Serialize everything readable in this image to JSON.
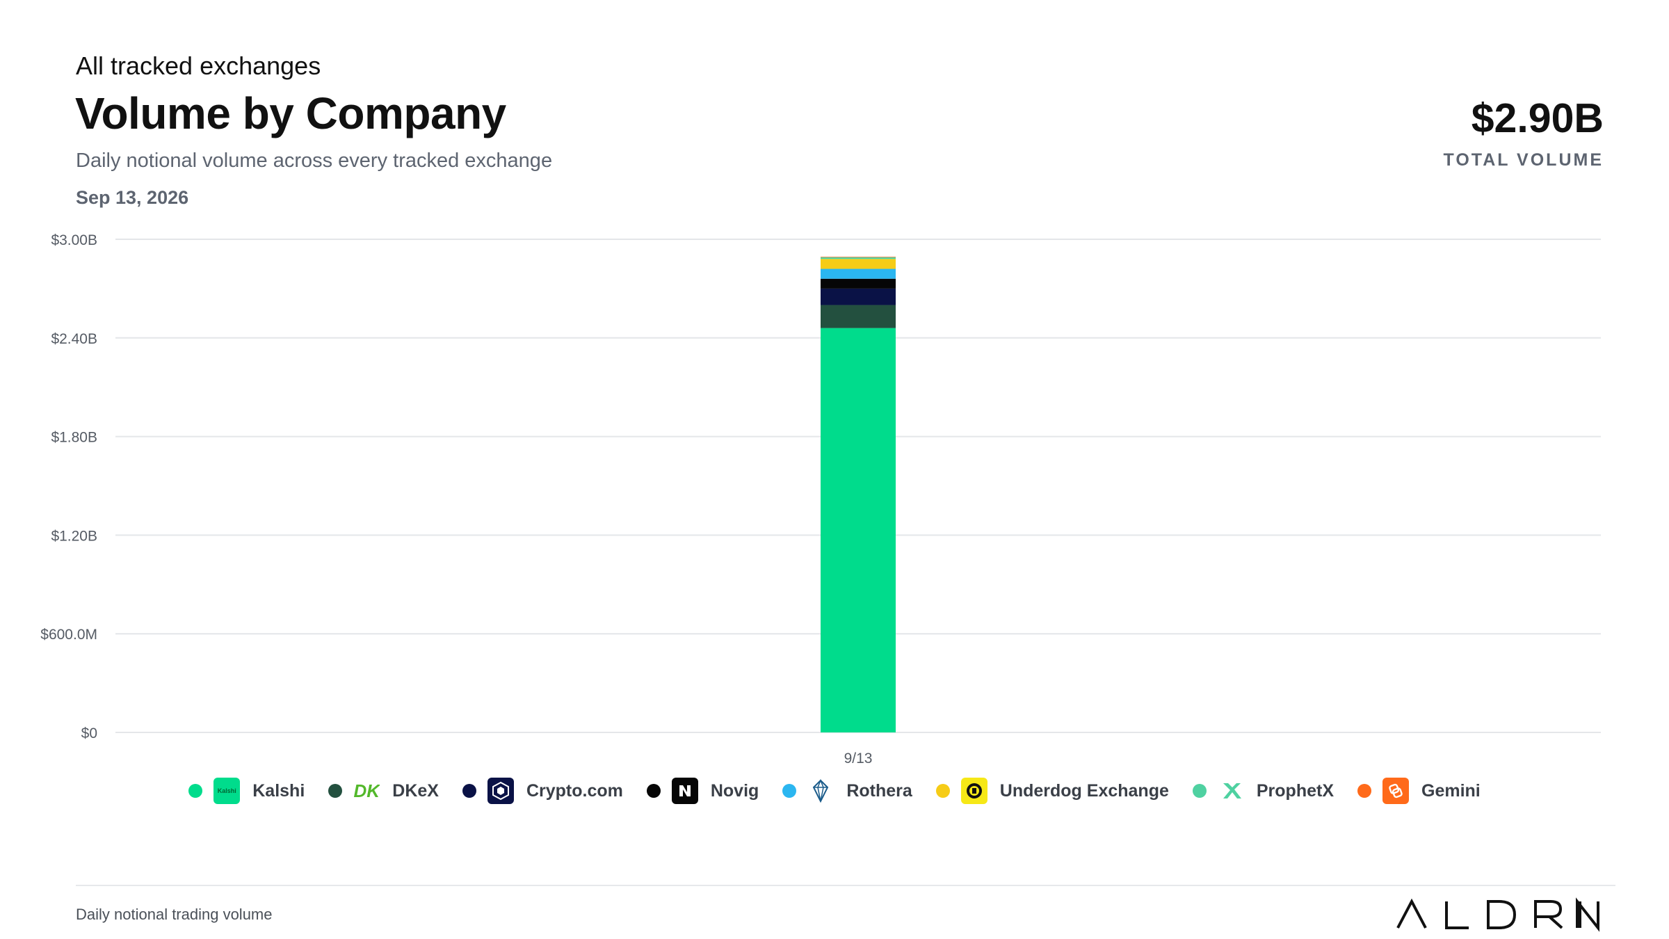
{
  "header": {
    "eyebrow": "All tracked exchanges",
    "title": "Volume by Company",
    "subtitle": "Daily notional volume across every tracked exchange",
    "date": "Sep 13, 2026",
    "total_value": "$2.90B",
    "total_label": "TOTAL VOLUME"
  },
  "chart_data": {
    "type": "bar",
    "stacked": true,
    "categories": [
      "9/13"
    ],
    "y_ticks": [
      {
        "value": 0,
        "label": "$0"
      },
      {
        "value": 600000000,
        "label": "$600.0M"
      },
      {
        "value": 1200000000,
        "label": "$1.20B"
      },
      {
        "value": 1800000000,
        "label": "$1.80B"
      },
      {
        "value": 2400000000,
        "label": "$2.40B"
      },
      {
        "value": 3000000000,
        "label": "$3.00B"
      }
    ],
    "ylim": [
      0,
      3000000000
    ],
    "grid": true,
    "legend_position": "bottom",
    "series": [
      {
        "name": "Kalshi",
        "color": "#00dc8c",
        "values": [
          2460000000
        ]
      },
      {
        "name": "DKeX",
        "color": "#23503f",
        "values": [
          140000000
        ]
      },
      {
        "name": "Crypto.com",
        "color": "#0a1246",
        "values": [
          100000000
        ]
      },
      {
        "name": "Novig",
        "color": "#060606",
        "values": [
          60000000
        ]
      },
      {
        "name": "Rothera",
        "color": "#2bb6f0",
        "values": [
          60000000
        ]
      },
      {
        "name": "Underdog Exchange",
        "color": "#f6cc17",
        "values": [
          60000000
        ]
      },
      {
        "name": "ProphetX",
        "color": "#4fd1a1",
        "values": [
          10000000
        ]
      },
      {
        "name": "Gemini",
        "color": "#ff6a1a",
        "values": [
          3000000
        ]
      }
    ]
  },
  "legend": {
    "logos": [
      {
        "series": "Kalshi",
        "icon": "kalshi-logo-icon",
        "text": "Kalshi"
      },
      {
        "series": "DKeX",
        "icon": "dk-logo-icon",
        "text": "DK"
      },
      {
        "series": "Crypto.com",
        "icon": "crypto-com-shield-icon"
      },
      {
        "series": "Novig",
        "icon": "novig-n-icon"
      },
      {
        "series": "Rothera",
        "icon": "rothera-crystal-icon"
      },
      {
        "series": "Underdog Exchange",
        "icon": "underdog-logo-icon"
      },
      {
        "series": "ProphetX",
        "icon": "prophetx-x-icon"
      },
      {
        "series": "Gemini",
        "icon": "gemini-logo-icon"
      }
    ]
  },
  "footer": {
    "note": "Daily notional trading volume",
    "brand": "ALDRIN"
  }
}
